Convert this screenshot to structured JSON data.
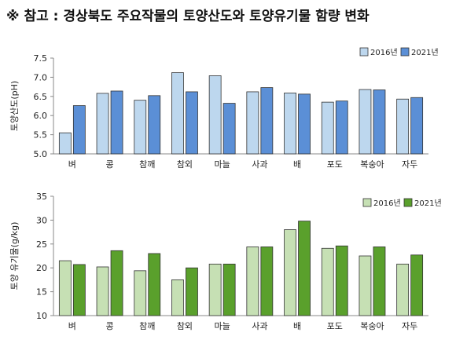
{
  "title": "※ 참고 : 경상북도 주요작물의 토양산도와 토양유기물 함량 변화",
  "chart_data": [
    {
      "type": "bar",
      "ylabel": "토양산도(pH)",
      "xlabel": "",
      "categories": [
        "벼",
        "콩",
        "참깨",
        "참외",
        "마늘",
        "사과",
        "배",
        "포도",
        "복숭아",
        "자두"
      ],
      "ylim": [
        5.0,
        7.5
      ],
      "yticks": [
        "5.0",
        "5.5",
        "6.0",
        "6.5",
        "7.0",
        "7.5"
      ],
      "grid": false,
      "legend_position": "top-right",
      "series": [
        {
          "name": "2016년",
          "color": "#bdd7ee",
          "values": [
            5.55,
            6.58,
            6.4,
            7.12,
            7.04,
            6.62,
            6.59,
            6.35,
            6.68,
            6.43
          ]
        },
        {
          "name": "2021년",
          "color": "#5b8fd6",
          "values": [
            6.26,
            6.64,
            6.52,
            6.62,
            6.32,
            6.73,
            6.56,
            6.38,
            6.67,
            6.47
          ]
        }
      ]
    },
    {
      "type": "bar",
      "ylabel": "토양 유기물(g/kg)",
      "xlabel": "",
      "categories": [
        "벼",
        "콩",
        "참깨",
        "참외",
        "마늘",
        "사과",
        "배",
        "포도",
        "복숭아",
        "자두"
      ],
      "ylim": [
        10,
        35
      ],
      "yticks": [
        "10",
        "15",
        "20",
        "25",
        "30",
        "35"
      ],
      "grid": false,
      "legend_position": "top-right",
      "series": [
        {
          "name": "2016년",
          "color": "#c6e0b4",
          "values": [
            21.5,
            20.2,
            19.4,
            17.5,
            20.8,
            24.4,
            28.0,
            24.1,
            22.5,
            20.8
          ]
        },
        {
          "name": "2021년",
          "color": "#5aa02c",
          "values": [
            20.7,
            23.6,
            23.0,
            20.0,
            20.8,
            24.4,
            29.8,
            24.6,
            24.4,
            22.7
          ]
        }
      ]
    }
  ]
}
